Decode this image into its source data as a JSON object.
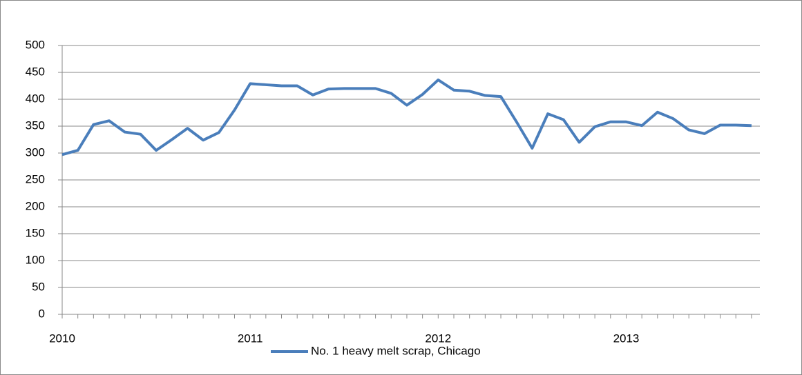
{
  "chart_data": {
    "type": "line",
    "categories": [
      "2010",
      null,
      null,
      null,
      null,
      null,
      null,
      null,
      null,
      null,
      null,
      null,
      "2011",
      null,
      null,
      null,
      null,
      null,
      null,
      null,
      null,
      null,
      null,
      null,
      "2012",
      null,
      null,
      null,
      null,
      null,
      null,
      null,
      null,
      null,
      null,
      null,
      "2013",
      null,
      null,
      null,
      null,
      null,
      null,
      null,
      null
    ],
    "series": [
      {
        "name": "No. 1 heavy melt scrap, Chicago",
        "color": "#4a7ebb",
        "values": [
          297,
          305,
          353,
          360,
          339,
          335,
          305,
          325,
          346,
          324,
          338,
          380,
          429,
          427,
          425,
          425,
          408,
          419,
          420,
          420,
          420,
          411,
          389,
          409,
          436,
          417,
          415,
          407,
          405,
          358,
          309,
          373,
          362,
          320,
          349,
          358,
          358,
          351,
          376,
          364,
          343,
          336,
          352,
          352,
          351
        ]
      }
    ],
    "ylim": [
      0,
      500
    ],
    "yticks": [
      0,
      50,
      100,
      150,
      200,
      250,
      300,
      350,
      400,
      450,
      500
    ],
    "grid": true,
    "legend": "bottom"
  }
}
